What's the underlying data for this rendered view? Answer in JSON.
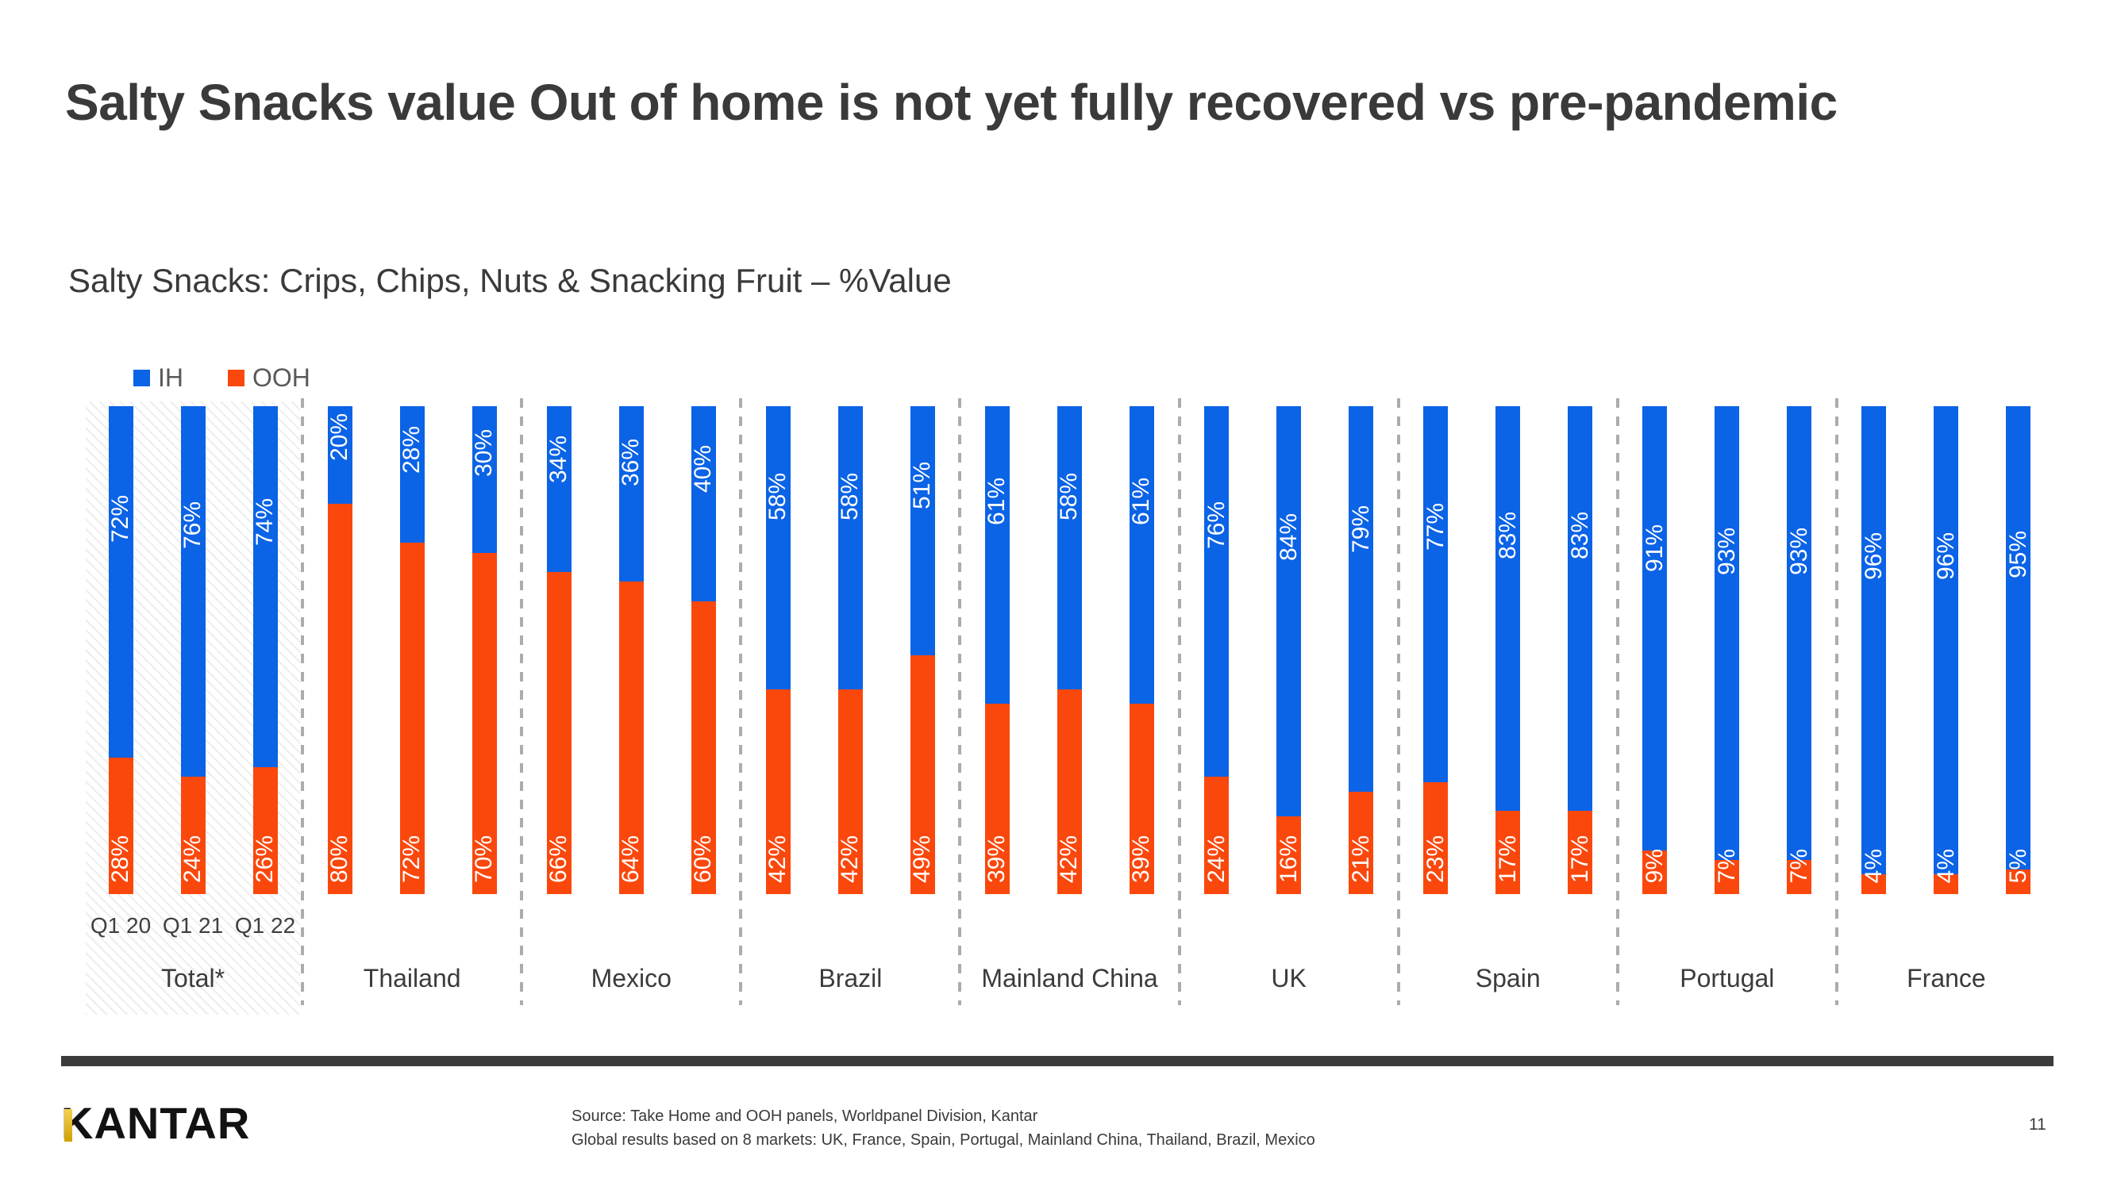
{
  "slide": {
    "title": "Salty Snacks value Out of home is not yet fully recovered vs pre-pandemic",
    "subtitle": "Salty Snacks: Crips, Chips, Nuts & Snacking Fruit – %Value"
  },
  "legend": {
    "items": [
      {
        "label": "IH",
        "color": "#0b63e6"
      },
      {
        "label": "OOH",
        "color": "#fa480d"
      }
    ]
  },
  "chart_data": {
    "type": "bar",
    "subtype": "stacked-100-percent",
    "orientation": "vertical",
    "unit": "%",
    "series_names": [
      "IH",
      "OOH"
    ],
    "colors": {
      "IH": "#0b63e6",
      "OOH": "#fa480d"
    },
    "legend_position": "top-left",
    "quarter_labels": [
      "Q1 20",
      "Q1 21",
      "Q1 22"
    ],
    "ylim": [
      0,
      100
    ],
    "grid": false,
    "groups": [
      {
        "label": "Total*",
        "highlighted": true,
        "show_quarter_labels": true,
        "IH": [
          72,
          76,
          74
        ],
        "OOH": [
          28,
          24,
          26
        ]
      },
      {
        "label": "Thailand",
        "IH": [
          20,
          28,
          30
        ],
        "OOH": [
          80,
          72,
          70
        ]
      },
      {
        "label": "Mexico",
        "IH": [
          34,
          36,
          40
        ],
        "OOH": [
          66,
          64,
          60
        ]
      },
      {
        "label": "Brazil",
        "IH": [
          58,
          58,
          51
        ],
        "OOH": [
          42,
          42,
          49
        ]
      },
      {
        "label": "Mainland China",
        "IH": [
          61,
          58,
          61
        ],
        "OOH": [
          39,
          42,
          39
        ]
      },
      {
        "label": "UK",
        "IH": [
          76,
          84,
          79
        ],
        "OOH": [
          24,
          16,
          21
        ]
      },
      {
        "label": "Spain",
        "IH": [
          77,
          83,
          83
        ],
        "OOH": [
          23,
          17,
          17
        ]
      },
      {
        "label": "Portugal",
        "IH": [
          91,
          93,
          93
        ],
        "OOH": [
          9,
          7,
          7
        ]
      },
      {
        "label": "France",
        "IH": [
          96,
          96,
          95
        ],
        "OOH": [
          4,
          4,
          5
        ]
      }
    ]
  },
  "footer": {
    "logo_text": "KANTAR",
    "source_lines": [
      "Source: Take Home and OOH panels, Worldpanel Division, Kantar",
      "Global results based on 8 markets: UK, France, Spain, Portugal, Mainland China, Thailand, Brazil, Mexico"
    ],
    "page_number": "11"
  }
}
